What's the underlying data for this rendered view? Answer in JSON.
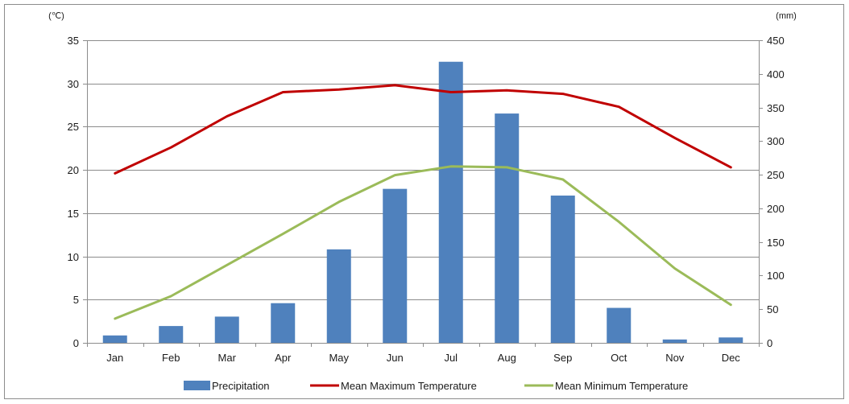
{
  "chart_data": {
    "type": "bar",
    "categories": [
      "Jan",
      "Feb",
      "Mar",
      "Apr",
      "May",
      "Jun",
      "Jul",
      "Aug",
      "Sep",
      "Oct",
      "Nov",
      "Dec"
    ],
    "left_axis": {
      "unit": "(℃)",
      "ylim": [
        0,
        35
      ],
      "ticks": [
        0,
        5,
        10,
        15,
        20,
        25,
        30,
        35
      ]
    },
    "right_axis": {
      "unit": "(mm)",
      "ylim": [
        0,
        450
      ],
      "ticks": [
        0,
        50,
        100,
        150,
        200,
        250,
        300,
        350,
        400,
        450
      ]
    },
    "grid": true,
    "legend_position": "bottom",
    "series": [
      {
        "name": "Precipitation",
        "kind": "bar",
        "axis": "right",
        "color": "#4f81bd",
        "values": [
          11,
          25,
          39,
          59,
          139,
          229,
          418,
          341,
          219,
          52,
          5,
          8
        ]
      },
      {
        "name": "Mean Maximum Temperature",
        "kind": "line",
        "axis": "left",
        "color": "#c00000",
        "values": [
          19.6,
          22.6,
          26.2,
          29.0,
          29.3,
          29.8,
          29.0,
          29.2,
          28.8,
          27.3,
          23.7,
          20.3
        ]
      },
      {
        "name": "Mean Minimum Temperature",
        "kind": "line",
        "axis": "left",
        "color": "#9bbb59",
        "values": [
          2.8,
          5.4,
          9.0,
          12.6,
          16.3,
          19.4,
          20.4,
          20.3,
          18.9,
          14.0,
          8.6,
          4.4
        ]
      }
    ]
  }
}
